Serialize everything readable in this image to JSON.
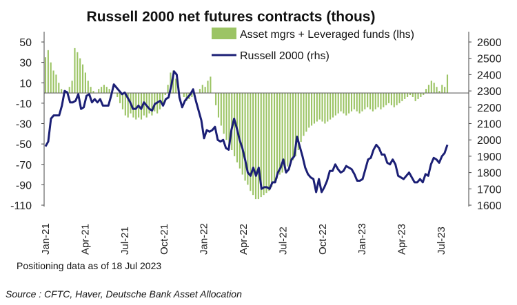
{
  "chart_data": {
    "type": "bar",
    "title": "Russell 2000 net futures contracts  (thous)",
    "note": "Positioning data as of 18 Jul 2023",
    "source": "Source : CFTC, Haver, Deutsche Bank Asset Allocation",
    "legend_position": "top-right",
    "grid": false,
    "x_tick_labels": [
      "Jan-21",
      "Apr-21",
      "Jul-21",
      "Oct-21",
      "Jan-22",
      "Apr-22",
      "Jul-22",
      "Oct-22",
      "Jan-23",
      "Apr-23",
      "Jul-23"
    ],
    "y_left": {
      "label": "lhs",
      "ylim": [
        -110,
        50
      ],
      "ticks": [
        50,
        30,
        10,
        -10,
        -30,
        -50,
        -70,
        -90,
        -110
      ]
    },
    "y_right": {
      "label": "rhs",
      "ylim": [
        1600,
        2600
      ],
      "ticks": [
        2600,
        2500,
        2400,
        2300,
        2200,
        2100,
        2000,
        1900,
        1800,
        1700,
        1600
      ]
    },
    "series": [
      {
        "name": "Asset mgrs + Leveraged funds (lhs)",
        "type": "bar",
        "axis": "left",
        "color": "#9cc465",
        "values": [
          35,
          42,
          30,
          22,
          18,
          10,
          4,
          0,
          2,
          6,
          12,
          44,
          40,
          34,
          28,
          20,
          12,
          6,
          2,
          0,
          4,
          6,
          8,
          6,
          4,
          2,
          0,
          -4,
          -10,
          -16,
          -22,
          -24,
          -20,
          -24,
          -26,
          -24,
          -26,
          -22,
          -24,
          -20,
          -22,
          -18,
          -20,
          -16,
          -10,
          -2,
          8,
          20,
          22,
          14,
          6,
          0,
          -4,
          -8,
          -6,
          -4,
          -2,
          0,
          4,
          8,
          6,
          12,
          16,
          0,
          -12,
          -24,
          -32,
          -40,
          -46,
          -52,
          -56,
          -62,
          -68,
          -74,
          -80,
          -86,
          -90,
          -96,
          -100,
          -104,
          -104,
          -102,
          -100,
          -98,
          -96,
          -92,
          -88,
          -84,
          -80,
          -78,
          -76,
          -72,
          -70,
          -66,
          -62,
          -56,
          -48,
          -42,
          -38,
          -34,
          -32,
          -30,
          -28,
          -26,
          -28,
          -30,
          -28,
          -26,
          -24,
          -22,
          -20,
          -18,
          -20,
          -22,
          -20,
          -18,
          -16,
          -18,
          -20,
          -18,
          -16,
          -14,
          -16,
          -18,
          -16,
          -14,
          -16,
          -14,
          -12,
          -10,
          -12,
          -14,
          -12,
          -10,
          -8,
          -6,
          -4,
          -2,
          -4,
          -8,
          -6,
          -4,
          -2,
          4,
          8,
          12,
          10,
          6,
          2,
          8,
          6,
          18
        ]
      },
      {
        "name": "Russell 2000 (rhs)",
        "type": "line",
        "axis": "right",
        "color": "#1b1f75",
        "values": [
          1960,
          1990,
          2130,
          2150,
          2150,
          2150,
          2210,
          2300,
          2290,
          2230,
          2230,
          2240,
          2280,
          2190,
          2200,
          2270,
          2280,
          2230,
          2250,
          2230,
          2250,
          2210,
          2210,
          2210,
          2270,
          2340,
          2320,
          2300,
          2280,
          2290,
          2260,
          2230,
          2190,
          2190,
          2210,
          2190,
          2230,
          2210,
          2190,
          2180,
          2220,
          2230,
          2240,
          2210,
          2250,
          2260,
          2330,
          2420,
          2400,
          2260,
          2200,
          2240,
          2260,
          2280,
          2310,
          2240,
          2180,
          2120,
          2010,
          2060,
          2050,
          2060,
          2080,
          2000,
          1990,
          2000,
          1950,
          1940,
          2060,
          2130,
          2070,
          2000,
          1950,
          1880,
          1800,
          1780,
          1830,
          1780,
          1830,
          1700,
          1710,
          1710,
          1700,
          1740,
          1740,
          1800,
          1830,
          1880,
          1800,
          1820,
          1880,
          1900,
          2020,
          1960,
          1900,
          1830,
          1790,
          1770,
          1760,
          1680,
          1760,
          1680,
          1710,
          1750,
          1810,
          1810,
          1850,
          1820,
          1800,
          1810,
          1840,
          1830,
          1820,
          1790,
          1750,
          1750,
          1760,
          1820,
          1880,
          1890,
          1940,
          1970,
          1950,
          1910,
          1910,
          1860,
          1850,
          1880,
          1850,
          1780,
          1770,
          1760,
          1780,
          1800,
          1770,
          1740,
          1740,
          1760,
          1740,
          1790,
          1780,
          1850,
          1890,
          1880,
          1860,
          1900,
          1920,
          1970
        ]
      }
    ]
  }
}
